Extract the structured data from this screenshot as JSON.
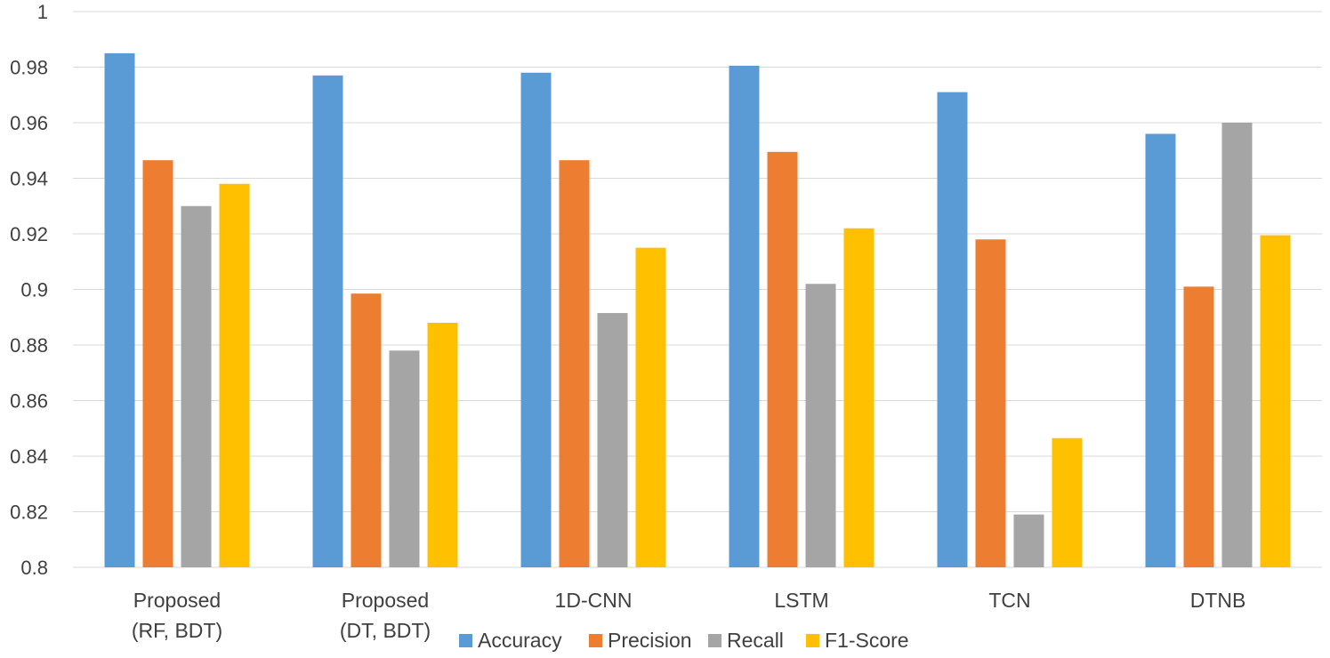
{
  "chart_data": {
    "type": "bar",
    "title": "",
    "xlabel": "",
    "ylabel": "",
    "categories": [
      [
        "Proposed",
        "(RF, BDT)"
      ],
      [
        "Proposed",
        "(DT, BDT)"
      ],
      [
        "1D-CNN"
      ],
      [
        "LSTM"
      ],
      [
        "TCN"
      ],
      [
        "DTNB"
      ]
    ],
    "series": [
      {
        "name": "Accuracy",
        "color": "#5b9bd5",
        "values": [
          0.985,
          0.977,
          0.978,
          0.9805,
          0.971,
          0.956
        ]
      },
      {
        "name": "Precision",
        "color": "#ed7d31",
        "values": [
          0.9465,
          0.8985,
          0.9465,
          0.9495,
          0.918,
          0.901
        ]
      },
      {
        "name": "Recall",
        "color": "#a5a5a5",
        "values": [
          0.93,
          0.878,
          0.8915,
          0.902,
          0.819,
          0.96
        ]
      },
      {
        "name": "F1-Score",
        "color": "#ffc000",
        "values": [
          0.938,
          0.888,
          0.915,
          0.922,
          0.8465,
          0.9195
        ]
      }
    ],
    "ylim": [
      0.8,
      1.0
    ],
    "yticks": [
      "0.8",
      "0.82",
      "0.84",
      "0.86",
      "0.88",
      "0.9",
      "0.92",
      "0.94",
      "0.96",
      "0.98",
      "1"
    ],
    "grid": true,
    "legend_position": "bottom-center"
  }
}
